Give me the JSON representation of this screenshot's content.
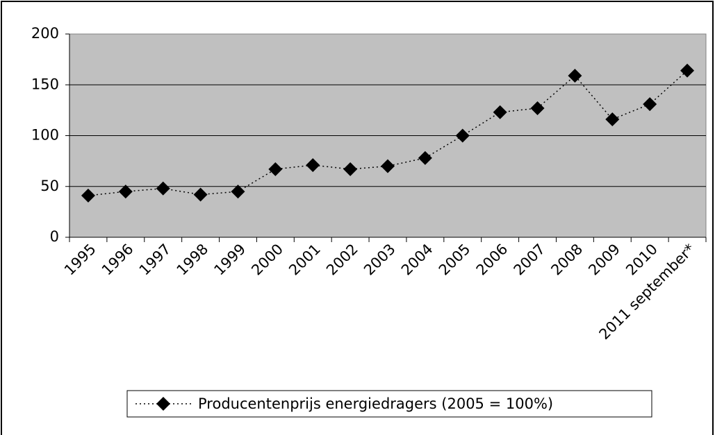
{
  "chart_data": {
    "type": "line",
    "categories": [
      "1995",
      "1996",
      "1997",
      "1998",
      "1999",
      "2000",
      "2001",
      "2002",
      "2003",
      "2004",
      "2005",
      "2006",
      "2007",
      "2008",
      "2009",
      "2010",
      "2011 september*"
    ],
    "series": [
      {
        "name": "Producentenprijs energiedragers (2005 = 100%)",
        "color": "#000000",
        "values": [
          41,
          45,
          48,
          42,
          45,
          67,
          71,
          67,
          70,
          78,
          100,
          123,
          127,
          159,
          116,
          131,
          164
        ]
      }
    ],
    "ylim": [
      0,
      200
    ],
    "yticks": [
      0,
      50,
      100,
      150,
      200
    ],
    "grid": true,
    "legend": "bottom"
  }
}
